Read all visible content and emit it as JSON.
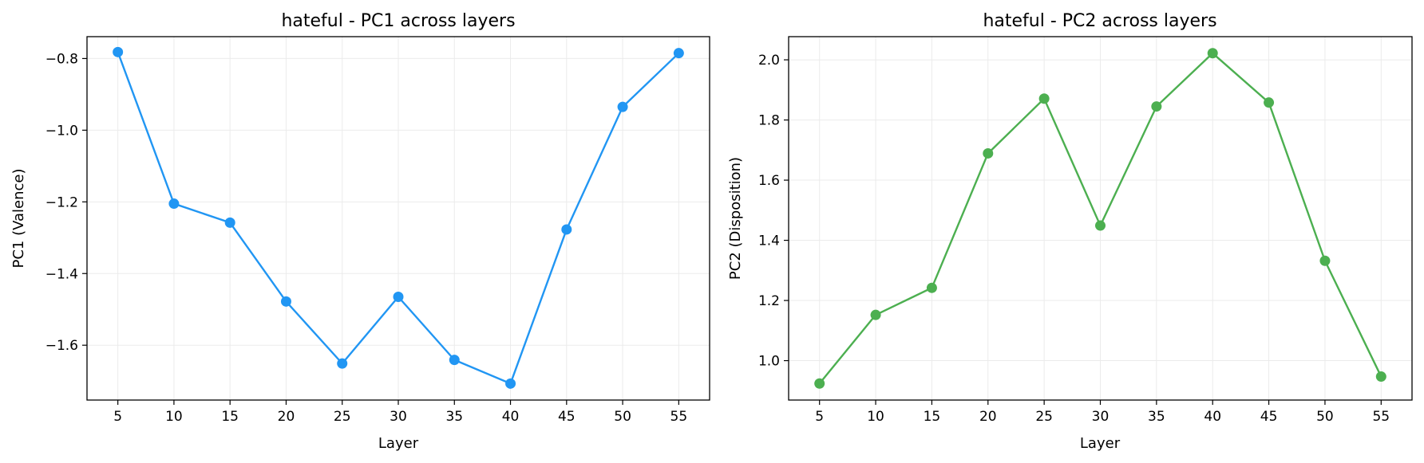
{
  "chart_data": [
    {
      "type": "line",
      "title": "hateful - PC1 across layers",
      "xlabel": "Layer",
      "ylabel": "PC1 (Valence)",
      "x": [
        5,
        10,
        15,
        20,
        25,
        30,
        35,
        40,
        45,
        50,
        55
      ],
      "series": [
        {
          "values": [
            -0.782,
            -1.205,
            -1.258,
            -1.478,
            -1.651,
            -1.465,
            -1.641,
            -1.707,
            -1.277,
            -0.935,
            -0.785
          ],
          "color": "#2196F3"
        }
      ],
      "xticks": [
        "5",
        "10",
        "15",
        "20",
        "25",
        "30",
        "35",
        "40",
        "45",
        "50",
        "55"
      ],
      "yticks": [
        "−1.6",
        "−1.4",
        "−1.2",
        "−1.0",
        "−0.8"
      ],
      "ytick_values": [
        -1.6,
        -1.4,
        -1.2,
        -1.0,
        -0.8
      ],
      "xlim": [
        2.25,
        57.75
      ],
      "ylim": [
        -1.753,
        -0.739
      ],
      "grid": true
    },
    {
      "type": "line",
      "title": "hateful - PC2 across layers",
      "xlabel": "Layer",
      "ylabel": "PC2 (Disposition)",
      "x": [
        5,
        10,
        15,
        20,
        25,
        30,
        35,
        40,
        45,
        50,
        55
      ],
      "series": [
        {
          "values": [
            0.924,
            1.152,
            1.242,
            1.689,
            1.871,
            1.449,
            1.845,
            2.022,
            1.858,
            1.332,
            0.947
          ],
          "color": "#4CAF50"
        }
      ],
      "xticks": [
        "5",
        "10",
        "15",
        "20",
        "25",
        "30",
        "35",
        "40",
        "45",
        "50",
        "55"
      ],
      "yticks": [
        "1.0",
        "1.2",
        "1.4",
        "1.6",
        "1.8",
        "2.0"
      ],
      "ytick_values": [
        1.0,
        1.2,
        1.4,
        1.6,
        1.8,
        2.0
      ],
      "xlim": [
        2.25,
        57.75
      ],
      "ylim": [
        0.869,
        2.077
      ],
      "grid": true
    }
  ]
}
